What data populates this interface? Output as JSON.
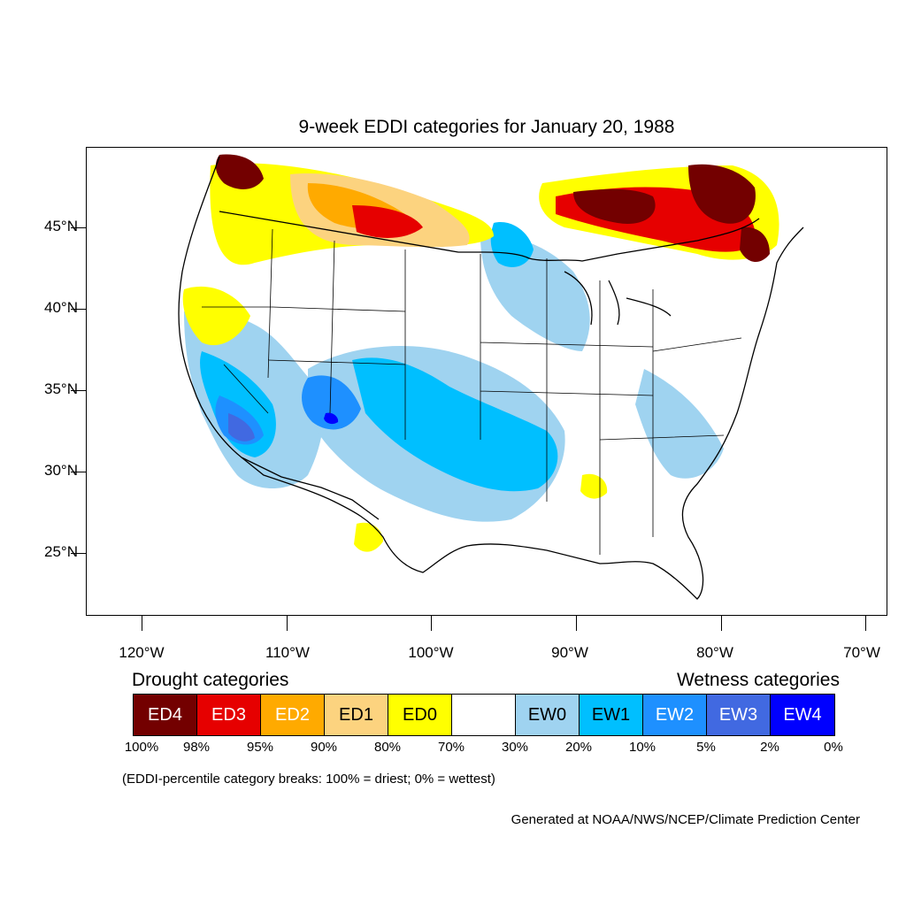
{
  "title": "9-week EDDI categories for January 20, 1988",
  "map": {
    "lat_labels": [
      "45°N",
      "40°N",
      "35°N",
      "30°N",
      "25°N"
    ],
    "lon_labels": [
      "120°W",
      "110°W",
      "100°W",
      "90°W",
      "80°W",
      "70°W"
    ],
    "lat_range": [
      21,
      49.5
    ],
    "lon_range": [
      -124,
      -68.5
    ]
  },
  "legend": {
    "drought_heading": "Drought categories",
    "wetness_heading": "Wetness categories",
    "categories": [
      {
        "label": "ED4",
        "color": "#730000",
        "text_color": "#ffffff"
      },
      {
        "label": "ED3",
        "color": "#e60000",
        "text_color": "#ffffff"
      },
      {
        "label": "ED2",
        "color": "#ffaa00",
        "text_color": "#ffffff"
      },
      {
        "label": "ED1",
        "color": "#fcd37f",
        "text_color": "#000000"
      },
      {
        "label": "ED0",
        "color": "#ffff00",
        "text_color": "#000000"
      },
      {
        "label": "",
        "color": "#ffffff",
        "text_color": "#000000"
      },
      {
        "label": "EW0",
        "color": "#9fd3f0",
        "text_color": "#000000"
      },
      {
        "label": "EW1",
        "color": "#00bfff",
        "text_color": "#000000"
      },
      {
        "label": "EW2",
        "color": "#1e90ff",
        "text_color": "#ffffff"
      },
      {
        "label": "EW3",
        "color": "#4169e1",
        "text_color": "#ffffff"
      },
      {
        "label": "EW4",
        "color": "#0000ff",
        "text_color": "#ffffff"
      }
    ],
    "breaks": [
      "100%",
      "98%",
      "95%",
      "90%",
      "80%",
      "70%",
      "30%",
      "20%",
      "10%",
      "5%",
      "2%",
      "0%"
    ]
  },
  "footnote": "(EDDI-percentile category breaks: 100% = driest; 0% = wettest)",
  "credit": "Generated at NOAA/NWS/NCEP/Climate Prediction Center"
}
